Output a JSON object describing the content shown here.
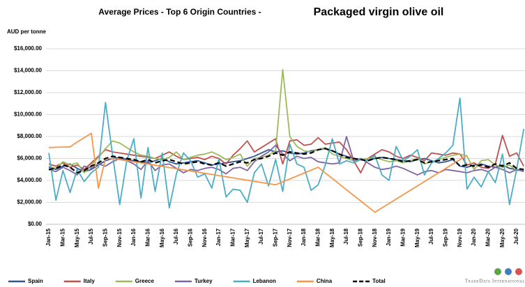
{
  "chart_data": {
    "type": "line",
    "title": "Average Prices - Top 6 Origin Countries -",
    "subtitle": "Packaged virgin olive oil",
    "y_label": "AUD per tonne",
    "categories": [
      "Jan-15",
      null,
      "Mar-15",
      null,
      "May-15",
      null,
      "Jul-15",
      null,
      "Sep-15",
      null,
      "Nov-15",
      null,
      "Jan-16",
      null,
      "Mar-16",
      null,
      "May-16",
      null,
      "Jul-16",
      null,
      "Sep-16",
      null,
      "Nov-16",
      null,
      "Jan-17",
      null,
      "Mar-17",
      null,
      "May-17",
      null,
      "Jul-17",
      null,
      "Sep-17",
      null,
      "Nov-17",
      null,
      "Jan-18",
      null,
      "Mar-18",
      null,
      "May-18",
      null,
      "Jul-18",
      null,
      "Sep-18",
      null,
      "Nov-18",
      null,
      "Jan-19",
      null,
      "Mar-19",
      null,
      "May-19",
      null,
      "Jul-19",
      null,
      "Sep-19",
      null,
      "Nov-19",
      null,
      "Jan-20",
      null,
      "Mar-20",
      null,
      "May-20",
      null,
      "Jul-20",
      null
    ],
    "ylim": [
      0,
      16000
    ],
    "yticks": [
      {
        "value": 0,
        "label": "$0.00"
      },
      {
        "value": 2000,
        "label": "$2,000.00"
      },
      {
        "value": 4000,
        "label": "$4,000.00"
      },
      {
        "value": 6000,
        "label": "$6,000.00"
      },
      {
        "value": 8000,
        "label": "$8,000.00"
      },
      {
        "value": 10000,
        "label": "$10,000.00"
      },
      {
        "value": 12000,
        "label": "$12,000.00"
      },
      {
        "value": 14000,
        "label": "$14,000.00"
      },
      {
        "value": 16000,
        "label": "$16,000.00"
      }
    ],
    "grid": true,
    "legend": "bottom",
    "series": [
      {
        "name": "Spain",
        "color": "#2f5597",
        "values": [
          5200,
          5000,
          5300,
          5500,
          5100,
          4800,
          5000,
          5400,
          5800,
          6000,
          6100,
          5900,
          5800,
          5700,
          5600,
          5800,
          6000,
          5700,
          5500,
          5600,
          5700,
          5800,
          5600,
          5400,
          5500,
          5600,
          5700,
          5800,
          6000,
          6200,
          6500,
          6800,
          6600,
          6700,
          6500,
          6400,
          6500,
          6700,
          6800,
          6900,
          6700,
          6400,
          6200,
          6000,
          5900,
          5800,
          6000,
          6100,
          6000,
          5900,
          5800,
          5700,
          5900,
          6000,
          5800,
          5600,
          5700,
          5900,
          5300,
          5200,
          5400,
          5500,
          5300,
          5200,
          5400,
          5100,
          5000,
          4900
        ]
      },
      {
        "name": "Italy",
        "color": "#c0504d",
        "values": [
          5500,
          5300,
          5600,
          5200,
          5400,
          5000,
          5600,
          6200,
          6800,
          6600,
          6500,
          6400,
          6300,
          6200,
          6100,
          6000,
          6300,
          6600,
          6200,
          5900,
          6000,
          6100,
          5900,
          6200,
          6000,
          5500,
          6300,
          6900,
          7600,
          6600,
          7000,
          7400,
          7800,
          5500,
          7600,
          7700,
          7200,
          7300,
          7900,
          7300,
          7400,
          7500,
          6800,
          5800,
          4700,
          6000,
          6400,
          6800,
          6600,
          6200,
          6000,
          6300,
          6100,
          5800,
          6500,
          6400,
          6300,
          6500,
          6400,
          5400,
          5600,
          5200,
          5100,
          5500,
          8100,
          6200,
          6500,
          5300
        ]
      },
      {
        "name": "Greece",
        "color": "#9bbb59",
        "values": [
          5300,
          5100,
          5700,
          5400,
          5600,
          4700,
          5400,
          6100,
          6900,
          7600,
          7400,
          7000,
          6600,
          6300,
          6200,
          6000,
          5900,
          6100,
          6600,
          5900,
          6100,
          6300,
          6400,
          6600,
          6300,
          5900,
          6100,
          6400,
          5300,
          6000,
          6100,
          6300,
          6700,
          14100,
          8000,
          7100,
          6700,
          6600,
          6800,
          7000,
          6400,
          6200,
          6000,
          5800,
          5900,
          6000,
          6100,
          5900,
          5700,
          5800,
          5600,
          5800,
          6000,
          5500,
          5700,
          5900,
          6100,
          6300,
          6400,
          6200,
          5000,
          5800,
          5900,
          5400,
          5200,
          5400,
          4900,
          5000
        ]
      },
      {
        "name": "Turkey",
        "color": "#8064a2",
        "values": [
          5000,
          4800,
          5200,
          4900,
          4500,
          5300,
          5100,
          5500,
          5300,
          5700,
          6000,
          5800,
          5500,
          5000,
          5800,
          4900,
          5400,
          5500,
          5100,
          4700,
          5000,
          4900,
          5100,
          5200,
          5000,
          4600,
          5100,
          5200,
          4900,
          5700,
          6200,
          6600,
          7200,
          6400,
          5800,
          6200,
          6000,
          6100,
          5700,
          5600,
          5500,
          5600,
          8000,
          5800,
          6000,
          5600,
          5200,
          5000,
          5100,
          5300,
          5100,
          4800,
          4500,
          4800,
          4900,
          4700,
          5000,
          4900,
          4800,
          4700,
          4900,
          5000,
          4800,
          5200,
          5000,
          4700,
          5000,
          4800
        ]
      },
      {
        "name": "Lebanon",
        "color": "#4bacc6",
        "values": [
          6500,
          2200,
          4900,
          2900,
          5000,
          3900,
          4700,
          5200,
          11100,
          6300,
          1800,
          5800,
          7800,
          2400,
          7000,
          3000,
          6500,
          1500,
          4600,
          6500,
          5800,
          4300,
          4600,
          3300,
          6000,
          2500,
          3200,
          3100,
          2000,
          4700,
          5500,
          3500,
          5900,
          3000,
          7300,
          5500,
          5200,
          3100,
          3600,
          5400,
          7800,
          5500,
          5800,
          5600,
          5900,
          5800,
          6300,
          4500,
          4000,
          7100,
          5800,
          6200,
          6800,
          4500,
          5600,
          6000,
          6500,
          7200,
          11500,
          3200,
          4300,
          3400,
          4800,
          3800,
          6400,
          1800,
          5000,
          8700
        ]
      },
      {
        "name": "China",
        "color": "#f79646",
        "values": [
          7000,
          7020,
          7040,
          7060,
          7500,
          7900,
          8300,
          3300,
          6000,
          6000,
          5900,
          5800,
          5700,
          5595,
          5490,
          5385,
          5280,
          5175,
          5070,
          4965,
          4860,
          4755,
          4650,
          4545,
          4440,
          4335,
          4230,
          4125,
          4020,
          3915,
          3810,
          3705,
          3600,
          3867,
          4133,
          4400,
          4667,
          4933,
          5200,
          4688,
          4175,
          3663,
          3150,
          2638,
          2125,
          1613,
          1100,
          1500,
          1900,
          2300,
          2700,
          3100,
          3500,
          3900,
          4300,
          4700,
          5100,
          5500,
          5900,
          6300,
          null,
          null,
          null,
          null,
          null,
          null,
          null,
          null
        ]
      },
      {
        "name": "Total",
        "color": "#000000",
        "dashed": true,
        "values": [
          5000,
          5100,
          5400,
          5200,
          4700,
          4900,
          5300,
          5600,
          6000,
          6200,
          6100,
          6000,
          5900,
          5700,
          5900,
          5600,
          5800,
          5900,
          5700,
          5500,
          5600,
          5700,
          5500,
          5400,
          5600,
          5300,
          5500,
          5700,
          5600,
          5900,
          6000,
          6200,
          6500,
          6300,
          6600,
          6500,
          6400,
          6500,
          6800,
          6900,
          6700,
          6400,
          6100,
          6000,
          5900,
          5800,
          6000,
          6100,
          6000,
          5900,
          5700,
          5800,
          5900,
          5600,
          5700,
          5800,
          5900,
          6000,
          5300,
          5400,
          5300,
          5400,
          5200,
          5500,
          5300,
          5600,
          5100,
          5000
        ]
      }
    ]
  },
  "logo": "TradeData International"
}
